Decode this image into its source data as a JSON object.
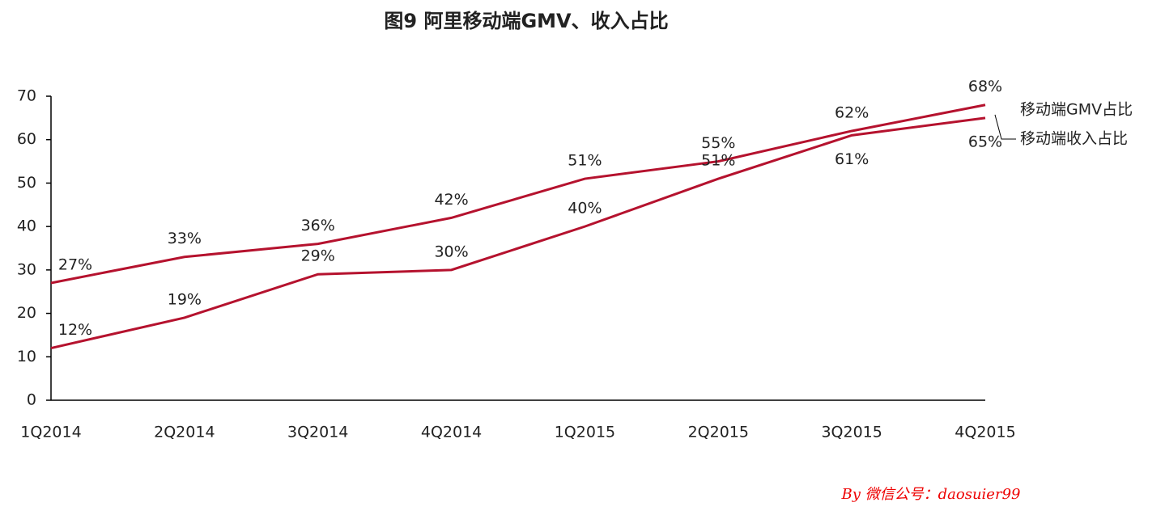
{
  "chart_data": {
    "type": "line",
    "title": "图9 阿里移动端GMV、收入占比",
    "categories": [
      "1Q2014",
      "2Q2014",
      "3Q2014",
      "4Q2014",
      "1Q2015",
      "2Q2015",
      "3Q2015",
      "4Q2015"
    ],
    "series": [
      {
        "name": "移动端GMV占比",
        "color": "#b5122e",
        "values": [
          27,
          33,
          36,
          42,
          51,
          55,
          62,
          68
        ],
        "value_labels": [
          "27%",
          "33%",
          "36%",
          "42%",
          "51%",
          "55%",
          "62%",
          "68%"
        ]
      },
      {
        "name": "移动端收入占比",
        "color": "#b5122e",
        "values": [
          12,
          19,
          29,
          30,
          40,
          51,
          61,
          65
        ],
        "value_labels": [
          "12%",
          "19%",
          "29%",
          "30%",
          "40%",
          "51%",
          "61%",
          "65%"
        ]
      }
    ],
    "ylim": [
      0,
      70
    ],
    "yticks": [
      0,
      10,
      20,
      30,
      40,
      50,
      60,
      70
    ],
    "grid": false,
    "watermark": "By 微信公号：daosuier99"
  }
}
